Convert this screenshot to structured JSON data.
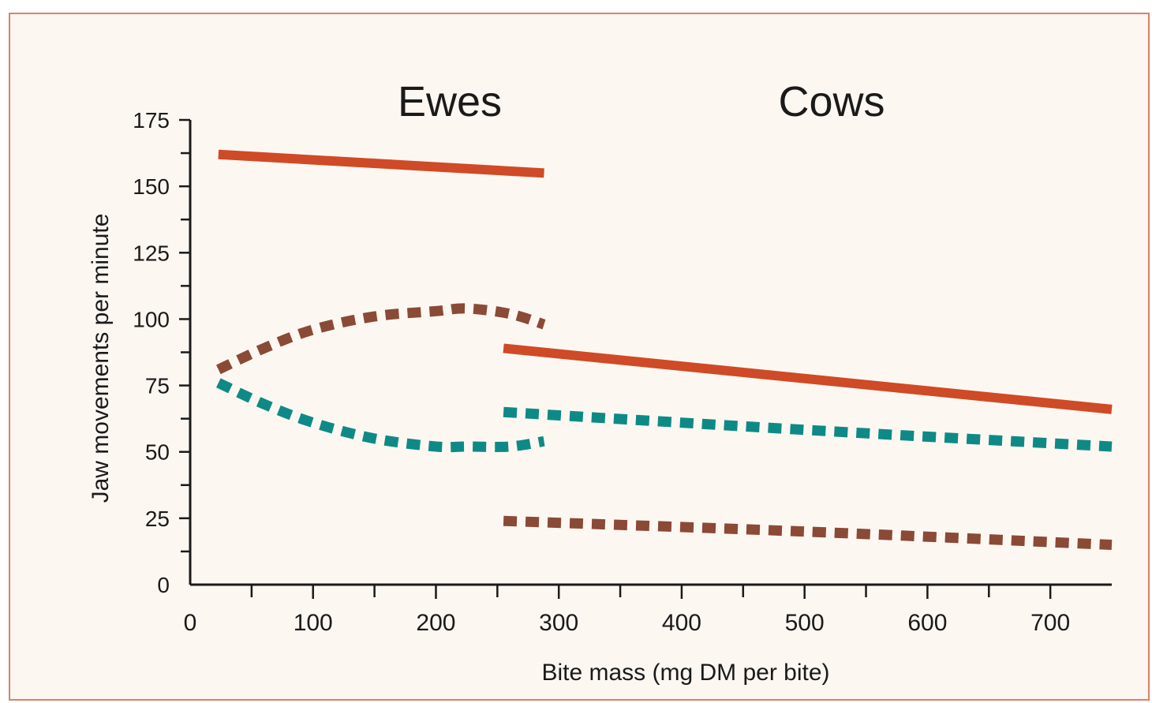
{
  "colors": {
    "frame_border": "#d9826d",
    "background": "#fdf7f2",
    "series_solid": "#cf4a26",
    "series_teal": "#0e8a86",
    "series_brown": "#8a4a36",
    "axis": "#1a1a1a"
  },
  "chart_data": {
    "type": "line",
    "panel_labels": [
      "Ewes",
      "Cows"
    ],
    "xlabel": "Bite mass (mg DM per bite)",
    "ylabel": "Jaw movements per minute",
    "xlim": [
      0,
      750
    ],
    "ylim": [
      0,
      175
    ],
    "x_ticks": [
      0,
      100,
      200,
      300,
      400,
      500,
      600,
      700
    ],
    "y_ticks": [
      0,
      25,
      50,
      75,
      100,
      125,
      150,
      175
    ],
    "grid": false,
    "legend": "none",
    "series": [
      {
        "group": "Ewes",
        "style": "solid",
        "color": "#cf4a26",
        "x": [
          23,
          288
        ],
        "y": [
          162,
          155
        ]
      },
      {
        "group": "Ewes",
        "style": "dashed",
        "color": "#8a4a36",
        "x": [
          23,
          60,
          100,
          150,
          200,
          225,
          260,
          288
        ],
        "y": [
          81,
          89,
          96,
          101,
          103,
          104,
          102,
          98
        ]
      },
      {
        "group": "Ewes",
        "style": "dashed",
        "color": "#0e8a86",
        "x": [
          23,
          60,
          100,
          150,
          200,
          225,
          260,
          288
        ],
        "y": [
          76,
          68,
          61,
          55,
          52,
          52,
          52,
          54
        ]
      },
      {
        "group": "Cows",
        "style": "solid",
        "color": "#cf4a26",
        "x": [
          255,
          750
        ],
        "y": [
          89,
          66
        ]
      },
      {
        "group": "Cows",
        "style": "dashed",
        "color": "#0e8a86",
        "x": [
          255,
          400,
          550,
          750
        ],
        "y": [
          65,
          61,
          57,
          52
        ]
      },
      {
        "group": "Cows",
        "style": "dashed",
        "color": "#8a4a36",
        "x": [
          255,
          500,
          750
        ],
        "y": [
          24,
          20,
          15
        ]
      }
    ]
  }
}
